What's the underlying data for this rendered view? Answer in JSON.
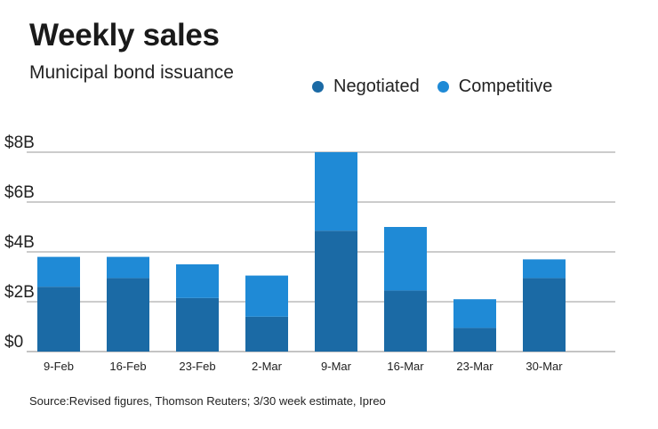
{
  "chart_data": {
    "type": "bar",
    "stacked": true,
    "title": "Weekly sales",
    "subtitle": "Municipal bond issuance",
    "categories": [
      "9-Feb",
      "16-Feb",
      "23-Feb",
      "2-Mar",
      "9-Mar",
      "16-Mar",
      "23-Mar",
      "30-Mar"
    ],
    "series": [
      {
        "name": "Negotiated",
        "color": "#1b6aa5",
        "values": [
          2.6,
          2.95,
          2.15,
          1.4,
          4.85,
          2.45,
          0.95,
          2.95
        ]
      },
      {
        "name": "Competitive",
        "color": "#1f8ad6",
        "values": [
          1.2,
          0.85,
          1.35,
          1.65,
          3.15,
          2.55,
          1.15,
          0.75
        ]
      }
    ],
    "yticks": [
      0,
      2,
      4,
      6,
      8
    ],
    "ytick_labels": [
      "$0",
      "$2B",
      "$4B",
      "$6B",
      "$8B"
    ],
    "ylim": [
      0,
      8
    ],
    "xlabel": "",
    "ylabel": "",
    "grid": true,
    "legend_position": "top-right",
    "source": "Source:Revised figures, Thomson Reuters; 3/30 week estimate, Ipreo"
  }
}
